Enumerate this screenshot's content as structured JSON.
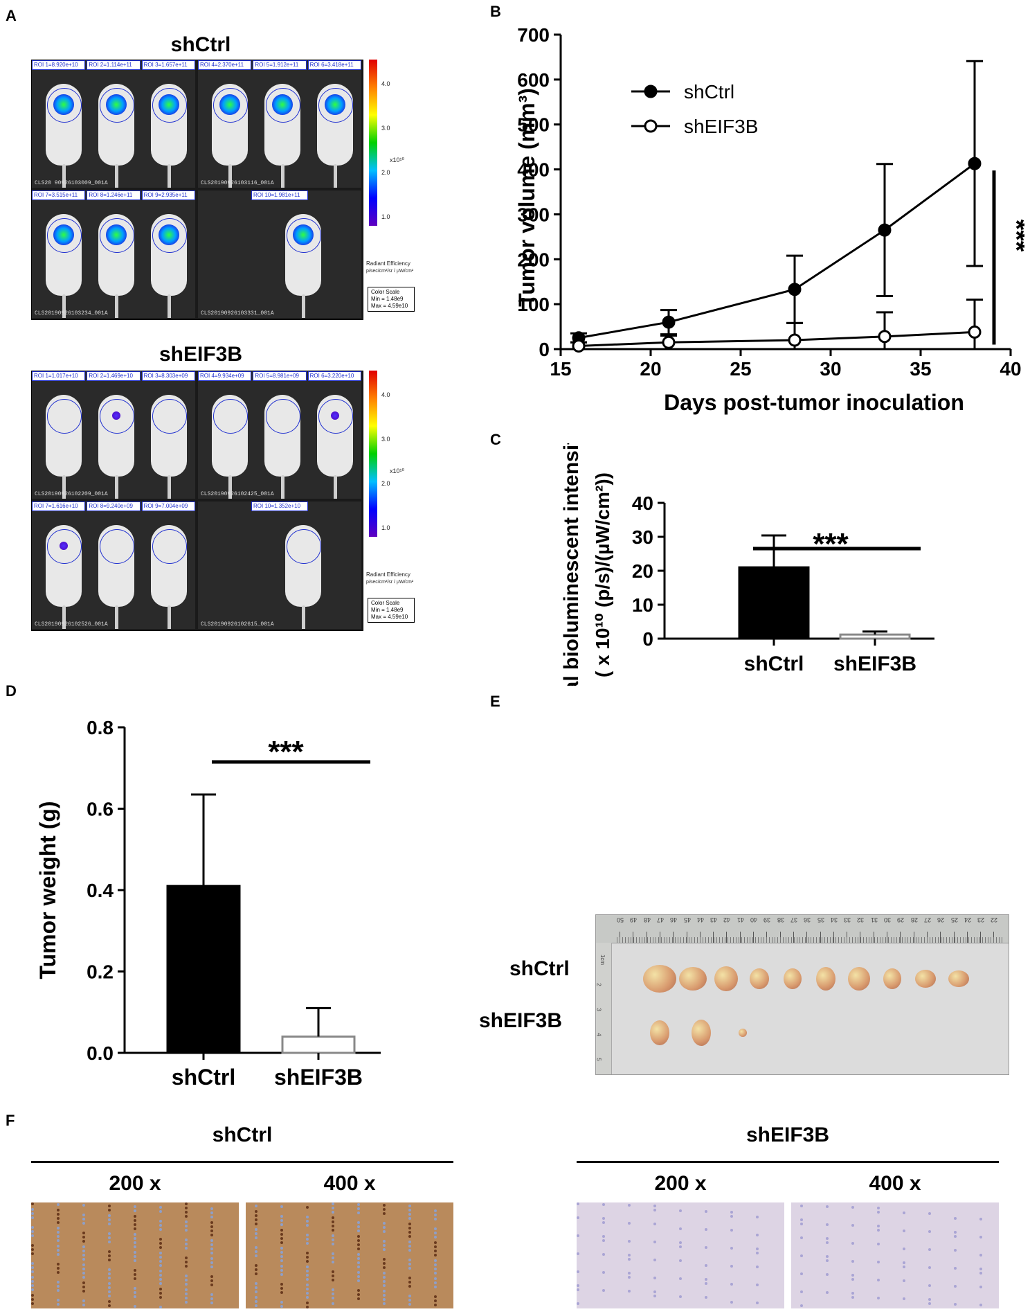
{
  "panels": {
    "A": "A",
    "B": "B",
    "C": "C",
    "D": "D",
    "E": "E",
    "F": "F"
  },
  "imaging": {
    "groups": [
      {
        "title": "shCtrl",
        "cells": [
          {
            "rois": [
              "ROI 1=8.920e+10",
              "ROI 2=1.114e+11",
              "ROI 3=1.657e+11"
            ],
            "caption": "CLS20 90926103009_001A"
          },
          {
            "rois": [
              "ROI 4=2.370e+11",
              "ROI 5=1.912e+11",
              "ROI 6=3.418e+11"
            ],
            "caption": "CLS20190926103116_001A"
          },
          {
            "rois": [
              "ROI 7=3.515e+11",
              "ROI 8=1.246e+11",
              "ROI 9=2.935e+11"
            ],
            "caption": "CLS20190926103234_001A"
          },
          {
            "rois": [
              "ROI 10=1.981e+11"
            ],
            "caption": "CLS20190926103331_001A"
          }
        ]
      },
      {
        "title": "shEIF3B",
        "cells": [
          {
            "rois": [
              "ROI 1=1.017e+10",
              "ROI 2=1.469e+10",
              "ROI 3=8.303e+09"
            ],
            "caption": "CLS20190926102209_001A"
          },
          {
            "rois": [
              "ROI 4=9.934e+09",
              "ROI 5=8.981e+09",
              "ROI 6=3.220e+10"
            ],
            "caption": "CLS20190926102425_001A"
          },
          {
            "rois": [
              "ROI 7=1.616e+10",
              "ROI 8=9.240e+09",
              "ROI 9=7.004e+09"
            ],
            "caption": "CLS20190926102526_001A"
          },
          {
            "rois": [
              "ROI 10=1.352e+10"
            ],
            "caption": "CLS20190926102615_001A"
          }
        ]
      }
    ],
    "colorbar": {
      "ticks": [
        "4.0",
        "3.0",
        "2.0",
        "1.0"
      ],
      "exponent": "x10¹⁰",
      "label": "Radiant Efficiency",
      "units": "p/sec/cm²/sr / µW/cm²",
      "scale_title": "Color Scale",
      "scale_min": "Min = 1.48e9",
      "scale_max": "Max = 4.59e10"
    }
  },
  "chart_data": [
    {
      "panel": "B",
      "type": "line",
      "xlabel": "Days post-tumor inoculation",
      "ylabel": "Tumor volume (mm³)",
      "xlim": [
        15,
        40
      ],
      "ylim": [
        0,
        700
      ],
      "xticks": [
        15,
        20,
        25,
        30,
        35,
        40
      ],
      "yticks": [
        0,
        100,
        200,
        300,
        400,
        500,
        600,
        700
      ],
      "legend_position": "top-left",
      "series": [
        {
          "name": "shCtrl",
          "marker": "filled-circle",
          "x": [
            16,
            21,
            28,
            33,
            38
          ],
          "y": [
            25,
            60,
            133,
            265,
            413
          ],
          "err": [
            10,
            27,
            75,
            147,
            228
          ]
        },
        {
          "name": "shEIF3B",
          "marker": "open-circle",
          "x": [
            16,
            21,
            28,
            33,
            38
          ],
          "y": [
            7,
            15,
            20,
            28,
            38
          ],
          "err": [
            8,
            15,
            38,
            54,
            72
          ]
        }
      ],
      "annotation": "***"
    },
    {
      "panel": "C",
      "type": "bar",
      "ylabel_line1": "Total bioluminescent intensity",
      "ylabel_line2": "( x 10¹⁰ (p/s)/(µW/cm²))",
      "categories": [
        "shCtrl",
        "shEIF3B"
      ],
      "values": [
        21.0,
        1.2
      ],
      "err": [
        9.4,
        0.9
      ],
      "ylim": [
        0,
        40
      ],
      "yticks": [
        0,
        10,
        20,
        30,
        40
      ],
      "annotation": "***"
    },
    {
      "panel": "D",
      "type": "bar",
      "ylabel": "Tumor weight (g)",
      "categories": [
        "shCtrl",
        "shEIF3B"
      ],
      "values": [
        0.41,
        0.04
      ],
      "err": [
        0.225,
        0.07
      ],
      "ylim": [
        0,
        0.8
      ],
      "yticks": [
        "0.0",
        "0.2",
        "0.4",
        "0.6",
        "0.8"
      ],
      "annotation": "***"
    }
  ],
  "photo": {
    "row_labels": [
      "shCtrl",
      "shEIF3B"
    ],
    "ruler_numbers": [
      "50",
      "49",
      "48",
      "47",
      "46",
      "45",
      "44",
      "43",
      "42",
      "41",
      "40",
      "39",
      "38",
      "37",
      "36",
      "35",
      "34",
      "33",
      "32",
      "31",
      "30",
      "29",
      "28",
      "27",
      "26",
      "25",
      "24",
      "23",
      "22"
    ],
    "side_numbers": [
      "1cm",
      "2",
      "3",
      "4",
      "5"
    ],
    "counts": {
      "shCtrl": 10,
      "shEIF3B": 3
    }
  },
  "histology": {
    "groups": [
      {
        "title": "shCtrl",
        "mag": [
          "200 x",
          "400 x"
        ],
        "stain": "#b98a5c"
      },
      {
        "title": "shEIF3B",
        "mag": [
          "200 x",
          "400 x"
        ],
        "stain": "#ddd4e4"
      }
    ]
  },
  "colors": {
    "bar_ctrl": "#000000",
    "bar_eif": "#ffffff",
    "roi_blue": "#2030d0"
  }
}
